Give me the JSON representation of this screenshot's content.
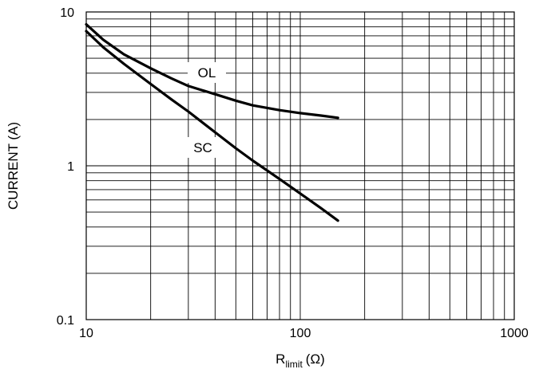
{
  "chart_data": {
    "type": "line",
    "xscale": "log",
    "yscale": "log",
    "xlim": [
      10,
      1000
    ],
    "ylim": [
      0.1,
      10
    ],
    "xlabel": "R",
    "xlabel_sub": "limit",
    "xlabel_unit": "(Ω)",
    "ylabel": "CURRENT (A)",
    "x_ticks": [
      "10",
      "100",
      "1000"
    ],
    "y_ticks": [
      "0.1",
      "1",
      "10"
    ],
    "grid": true,
    "series": [
      {
        "name": "OL",
        "x": [
          10,
          12,
          15,
          20,
          25,
          30,
          40,
          50,
          60,
          80,
          100,
          125,
          150
        ],
        "y": [
          8.3,
          6.6,
          5.3,
          4.3,
          3.7,
          3.3,
          2.92,
          2.65,
          2.47,
          2.3,
          2.2,
          2.12,
          2.05
        ]
      },
      {
        "name": "SC",
        "x": [
          10,
          12,
          15,
          20,
          25,
          30,
          40,
          50,
          60,
          80,
          100,
          125,
          150
        ],
        "y": [
          7.5,
          5.9,
          4.6,
          3.4,
          2.7,
          2.25,
          1.65,
          1.3,
          1.08,
          0.82,
          0.66,
          0.53,
          0.44
        ]
      }
    ]
  }
}
